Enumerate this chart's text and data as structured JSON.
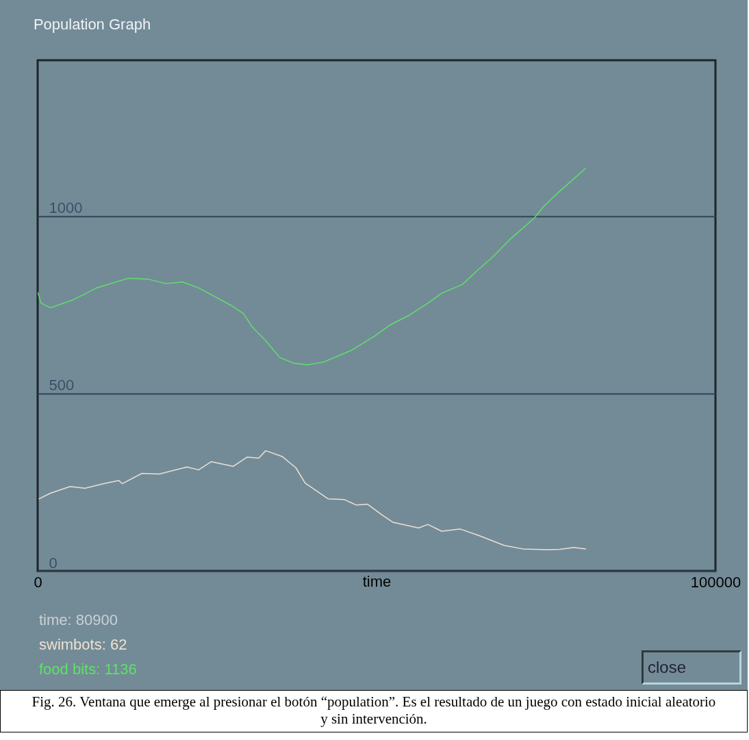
{
  "chart_data": {
    "type": "line",
    "title": "Population Graph",
    "xlabel": "time",
    "xlim": [
      0,
      100000
    ],
    "xticks": [
      0,
      100000
    ],
    "ylim": [
      0,
      1440
    ],
    "yticks": [
      0,
      500,
      1000
    ],
    "grid": "y",
    "series": [
      {
        "color": "#eee0d2",
        "x": [
          170,
          1880,
          4790,
          7000,
          9740,
          11960,
          12470,
          15380,
          17940,
          22030,
          23750,
          25620,
          28870,
          30920,
          32620,
          33650,
          36040,
          38090,
          39460,
          42880,
          45260,
          46980,
          48680,
          50730,
          52440,
          56200,
          57570,
          59610,
          62350,
          65080,
          68830,
          71570,
          75330,
          77040,
          79090,
          80900
        ],
        "values": [
          203,
          219,
          238,
          233,
          246,
          255,
          246,
          275,
          273,
          293,
          285,
          308,
          295,
          321,
          318,
          339,
          323,
          291,
          248,
          203,
          201,
          186,
          188,
          159,
          137,
          121,
          131,
          112,
          118,
          100,
          72,
          62,
          60,
          61,
          66,
          62
        ]
      },
      {
        "color": "#5fe06a",
        "x": [
          0,
          515,
          1880,
          5300,
          8710,
          13330,
          16230,
          18960,
          21350,
          23750,
          26480,
          28520,
          30400,
          31600,
          33650,
          35700,
          37750,
          39800,
          42190,
          46290,
          49700,
          52030,
          54830,
          57570,
          59610,
          62690,
          64740,
          67130,
          69860,
          73280,
          74650,
          77040,
          80900
        ],
        "values": [
          786,
          755,
          742,
          765,
          798,
          825,
          823,
          810,
          815,
          798,
          770,
          749,
          725,
          689,
          649,
          602,
          586,
          581,
          589,
          622,
          662,
          694,
          721,
          755,
          783,
          808,
          845,
          885,
          938,
          995,
          1028,
          1071,
          1136
        ]
      }
    ],
    "annotations": [
      "time: 80900",
      "swimbots: 62",
      "food bits: 1136",
      "close",
      "Fig. 26. Ventana que emerge al presionar el botón “population”. Es el resultado de un juego con estado inicial aleatorio y sin intervención."
    ]
  }
}
